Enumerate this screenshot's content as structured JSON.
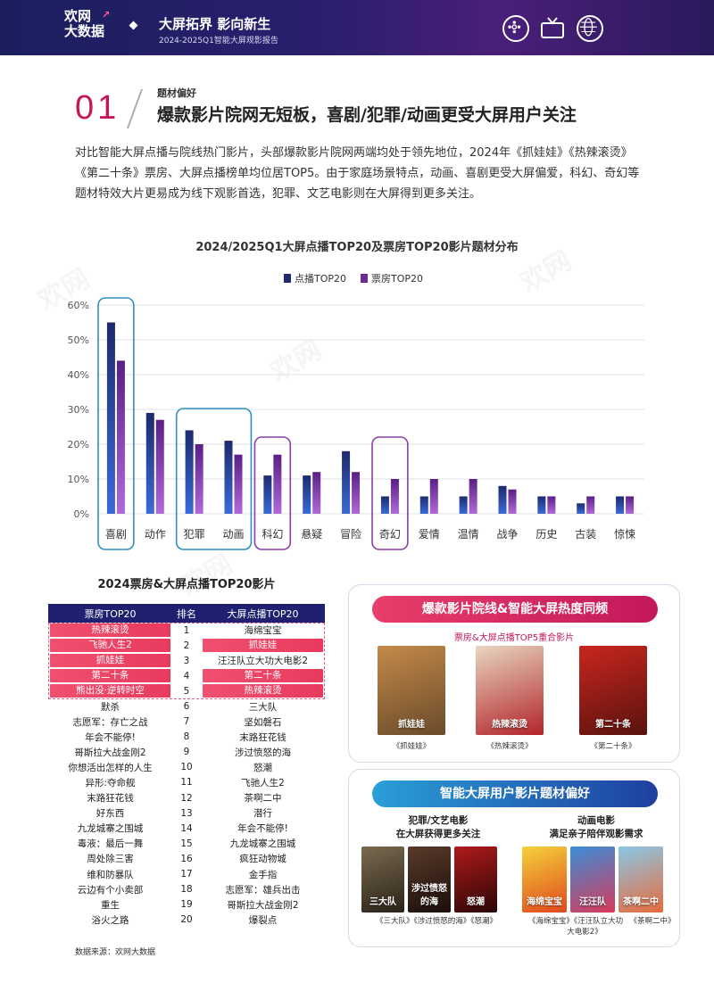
{
  "header": {
    "logo_line1": "欢网",
    "logo_line2": "大数据",
    "title": "大屏拓界 影向新生",
    "subtitle": "2024-2025Q1智能大屏观影报告",
    "icons": [
      "film-reel-icon",
      "tv-icon",
      "globe-icon"
    ]
  },
  "section": {
    "number": "01",
    "kicker": "题材偏好",
    "title": "爆款影片院网无短板，喜剧/犯罪/动画更受大屏用户关注"
  },
  "intro": "对比智能大屏点播与院线热门影片，头部爆款影片院网两端均处于领先地位，2024年《抓娃娃》《热辣滚烫》《第二十条》票房、大屏点播榜单均位居TOP5。由于家庭场景特点，动画、喜剧更受大屏偏爱，科幻、奇幻等题材特效大片更易成为线下观影首选，犯罪、文艺电影则在大屏得到更多关注。",
  "chart_data": {
    "type": "bar",
    "title": "2024/2025Q1大屏点播TOP20及票房TOP20影片题材分布",
    "categories": [
      "喜剧",
      "动作",
      "犯罪",
      "动画",
      "科幻",
      "悬疑",
      "冒险",
      "奇幻",
      "爱情",
      "温情",
      "战争",
      "历史",
      "古装",
      "惊悚"
    ],
    "series": [
      {
        "name": "点播TOP20",
        "values": [
          55,
          29,
          24,
          21,
          11,
          11,
          18,
          5,
          5,
          5,
          8,
          5,
          3,
          5
        ]
      },
      {
        "name": "票房TOP20",
        "values": [
          44,
          27,
          20,
          17,
          17,
          12,
          12,
          10,
          10,
          10,
          7,
          5,
          5,
          5
        ]
      }
    ],
    "ylim": [
      0,
      60
    ],
    "yticks": [
      "0%",
      "10%",
      "20%",
      "30%",
      "40%",
      "50%",
      "60%"
    ],
    "highlight_groups": [
      {
        "categories": [
          "喜剧"
        ],
        "color": "#2f8fc0"
      },
      {
        "categories": [
          "犯罪",
          "动画"
        ],
        "color": "#2f8fc0"
      },
      {
        "categories": [
          "科幻"
        ],
        "color": "#8a3fa6"
      },
      {
        "categories": [
          "奇幻"
        ],
        "color": "#8a3fa6"
      }
    ],
    "grid": true,
    "legend": "top-center",
    "colors": {
      "点播TOP20": "#1d2a6e",
      "票房TOP20": "#6a2a90"
    }
  },
  "table": {
    "title": "2024票房&大屏点播TOP20影片",
    "headers": [
      "票房TOP20",
      "排名",
      "大屏点播TOP20"
    ],
    "rows": [
      [
        "热辣滚烫",
        "1",
        "海绵宝宝"
      ],
      [
        "飞驰人生2",
        "2",
        "抓娃娃"
      ],
      [
        "抓娃娃",
        "3",
        "汪汪队立大功大电影2"
      ],
      [
        "第二十条",
        "4",
        "第二十条"
      ],
      [
        "熊出没·逆转时空",
        "5",
        "热辣滚烫"
      ],
      [
        "默杀",
        "6",
        "三大队"
      ],
      [
        "志愿军：存亡之战",
        "7",
        "坚如磐石"
      ],
      [
        "年会不能停!",
        "8",
        "末路狂花钱"
      ],
      [
        "哥斯拉大战金刚2",
        "9",
        "涉过愤怒的海"
      ],
      [
        "你想活出怎样的人生",
        "10",
        "怒潮"
      ],
      [
        "异形:夺命舰",
        "11",
        "飞驰人生2"
      ],
      [
        "末路狂花钱",
        "12",
        "茶啊二中"
      ],
      [
        "好东西",
        "13",
        "潜行"
      ],
      [
        "九龙城寨之围城",
        "14",
        "年会不能停!"
      ],
      [
        "毒液：最后一舞",
        "15",
        "九龙城寨之围城"
      ],
      [
        "周处除三害",
        "16",
        "疯狂动物城"
      ],
      [
        "维和防暴队",
        "17",
        "金手指"
      ],
      [
        "云边有个小卖部",
        "18",
        "志愿军：雄兵出击"
      ],
      [
        "重生",
        "19",
        "哥斯拉大战金刚2"
      ],
      [
        "浴火之路",
        "20",
        "爆裂点"
      ]
    ],
    "highlight_left": [
      true,
      true,
      true,
      true,
      true
    ],
    "highlight_right": [
      false,
      true,
      false,
      true,
      true
    ],
    "highlight_color": "#e8455f"
  },
  "card1": {
    "pill": "爆款影片院线&智能大屏热度同频",
    "sub": "票房&大屏点播TOP5重合影片",
    "posters": [
      {
        "caption": "《抓娃娃》",
        "poster_text": "抓娃娃",
        "colors": [
          "#c48a4a",
          "#6a4a2a"
        ]
      },
      {
        "caption": "《热辣滚烫》",
        "poster_text": "热辣滚烫",
        "colors": [
          "#e8d6c0",
          "#b2242a"
        ]
      },
      {
        "caption": "《第二十条》",
        "poster_text": "第二十条",
        "colors": [
          "#c8261e",
          "#5a120e"
        ]
      }
    ]
  },
  "card2": {
    "pill": "智能大屏用户影片题材偏好",
    "left_heading": "犯罪/文艺电影\n在大屏获得更多关注",
    "right_heading": "动画电影\n满足亲子陪伴观影需求",
    "left_posters": [
      {
        "poster_text": "三大队",
        "colors": [
          "#7a6a50",
          "#2a2218"
        ]
      },
      {
        "poster_text": "涉过愤怒的海",
        "colors": [
          "#5a3a2a",
          "#1a0e0a"
        ]
      },
      {
        "poster_text": "怒潮",
        "colors": [
          "#b01a1a",
          "#2a0606"
        ]
      }
    ],
    "right_posters": [
      {
        "poster_text": "海绵宝宝",
        "colors": [
          "#f4d23a",
          "#e0481e"
        ]
      },
      {
        "poster_text": "汪汪队",
        "colors": [
          "#3a8ed8",
          "#d83a5a"
        ]
      },
      {
        "poster_text": "茶啊二中",
        "colors": [
          "#8ac8e8",
          "#e86a3a"
        ]
      }
    ],
    "left_captions": "《三大队》《涉过愤怒的海》《怒潮》",
    "right_captions_line1": "《海绵宝宝》《汪汪队立大功",
    "right_captions_line2": "大电影2》",
    "right_captions_tail": "《茶啊二中》"
  },
  "source": "数据来源：欢网大数据"
}
